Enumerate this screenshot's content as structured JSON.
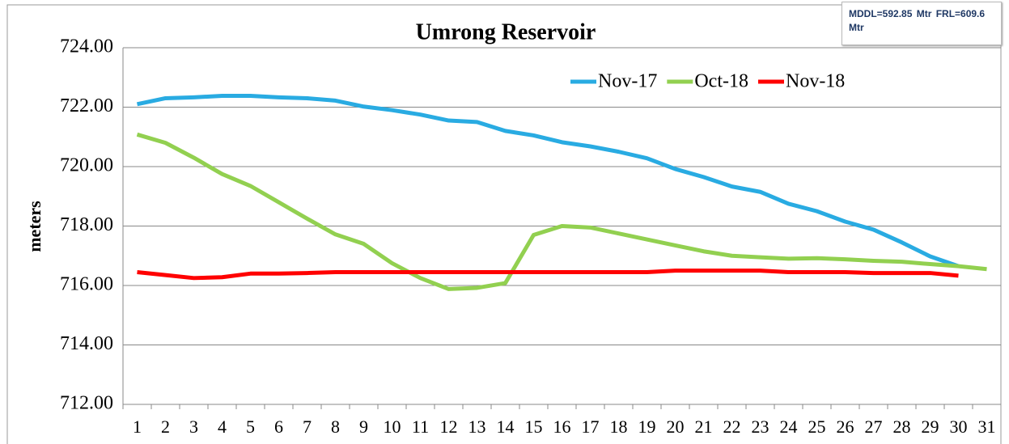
{
  "chart_data": {
    "type": "line",
    "title": "Umrong Reservoir",
    "ylabel": "meters",
    "annotation": "MDDL=592.85 Mtr  FRL=609.6 Mtr",
    "categories": [
      "1",
      "2",
      "3",
      "4",
      "5",
      "6",
      "7",
      "8",
      "9",
      "10",
      "11",
      "12",
      "13",
      "14",
      "15",
      "16",
      "17",
      "18",
      "19",
      "20",
      "21",
      "22",
      "23",
      "24",
      "25",
      "26",
      "27",
      "28",
      "29",
      "30",
      "31"
    ],
    "ylim": [
      712,
      724
    ],
    "yticks": [
      {
        "value": 712,
        "label": "712.00"
      },
      {
        "value": 714,
        "label": "714.00"
      },
      {
        "value": 716,
        "label": "716.00"
      },
      {
        "value": 718,
        "label": "718.00"
      },
      {
        "value": 720,
        "label": "720.00"
      },
      {
        "value": 722,
        "label": "722.00"
      },
      {
        "value": 724,
        "label": "724.00"
      }
    ],
    "grid": true,
    "series": [
      {
        "name": "Nov-17",
        "color": "#29abe2",
        "values": [
          722.1,
          722.3,
          722.33,
          722.38,
          722.38,
          722.33,
          722.3,
          722.22,
          722.02,
          721.9,
          721.75,
          721.55,
          721.5,
          721.2,
          721.05,
          720.82,
          720.68,
          720.5,
          720.28,
          719.92,
          719.65,
          719.33,
          719.15,
          718.75,
          718.5,
          718.15,
          717.88,
          717.45,
          716.98,
          716.65,
          null
        ]
      },
      {
        "name": "Oct-18",
        "color": "#92d050",
        "values": [
          721.08,
          720.8,
          720.3,
          719.75,
          719.35,
          718.8,
          718.25,
          717.72,
          717.4,
          716.75,
          716.25,
          715.88,
          715.92,
          716.08,
          717.7,
          718.0,
          717.95,
          717.75,
          717.55,
          717.35,
          717.15,
          717.0,
          716.95,
          716.9,
          716.92,
          716.88,
          716.83,
          716.8,
          716.72,
          716.65,
          716.55
        ]
      },
      {
        "name": "Nov-18",
        "color": "#ff0000",
        "values": [
          716.45,
          716.35,
          716.25,
          716.28,
          716.4,
          716.4,
          716.42,
          716.45,
          716.45,
          716.45,
          716.45,
          716.45,
          716.45,
          716.45,
          716.45,
          716.45,
          716.45,
          716.45,
          716.45,
          716.5,
          716.5,
          716.5,
          716.5,
          716.45,
          716.45,
          716.45,
          716.42,
          716.42,
          716.42,
          716.33,
          null
        ]
      }
    ]
  }
}
